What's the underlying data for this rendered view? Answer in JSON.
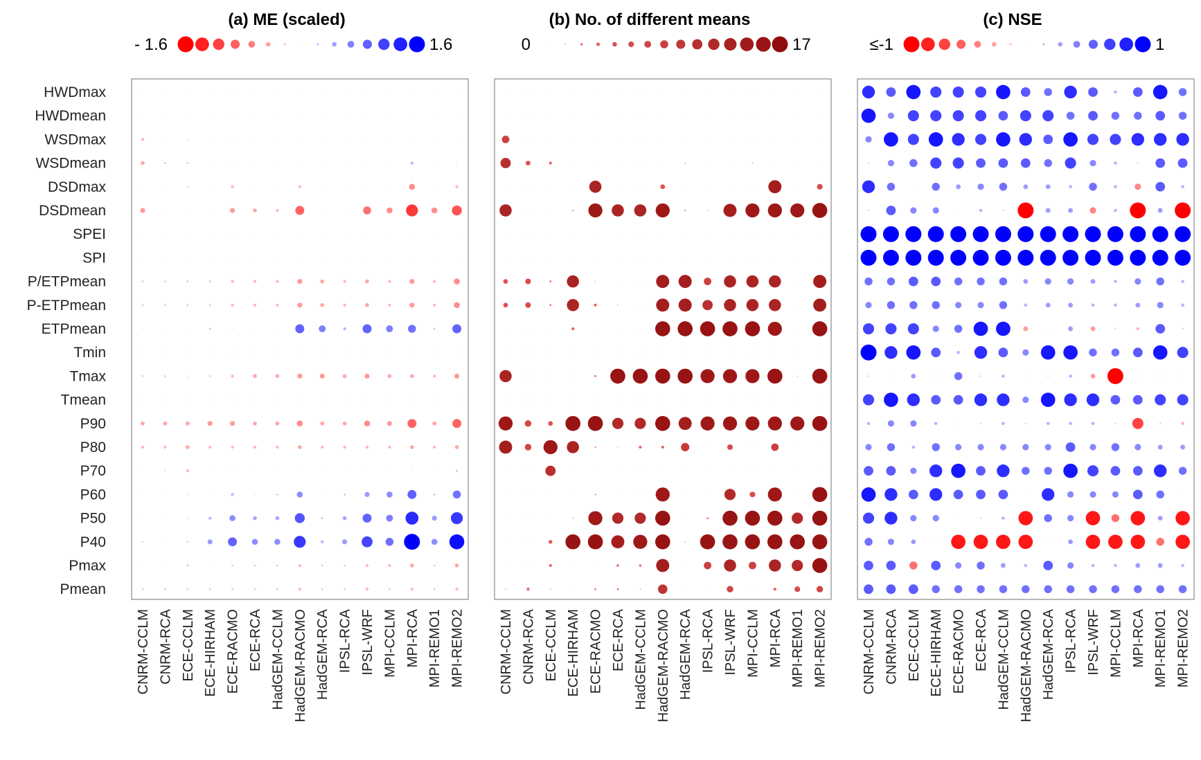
{
  "chart_data": {
    "type": "bubble-matrix",
    "rows": [
      "HWDmax",
      "HWDmean",
      "WSDmax",
      "WSDmean",
      "DSDmax",
      "DSDmean",
      "SPEI",
      "SPI",
      "P/ETPmean",
      "P-ETPmean",
      "ETPmean",
      "Tmin",
      "Tmax",
      "Tmean",
      "P90",
      "P80",
      "P70",
      "P60",
      "P50",
      "P40",
      "Pmax",
      "Pmean"
    ],
    "columns": [
      "CNRM-CCLM",
      "CNRM-RCA",
      "ECE-CCLM",
      "ECE-HIRHAM",
      "ECE-RACMO",
      "ECE-RCA",
      "HadGEM-CCLM",
      "HadGEM-RACMO",
      "HadGEM-RCA",
      "IPSL-RCA",
      "IPSL-WRF",
      "MPI-CCLM",
      "MPI-RCA",
      "MPI-REMO1",
      "MPI-REMO2"
    ],
    "panels": [
      {
        "title": "(a)  ME (scaled)",
        "legend_min_label": "- 1.6",
        "legend_max_label": "1.6",
        "scale": "diverging",
        "range": [
          -1.6,
          1.6
        ],
        "neg_color": "#ff0000",
        "pos_color": "#0000ff",
        "values": [
          [
            0,
            0,
            0,
            0,
            0,
            -0.1,
            0,
            0,
            0,
            0,
            0,
            0,
            -0.1,
            0,
            -0.1
          ],
          [
            0,
            0,
            0,
            0,
            0,
            0,
            0,
            0,
            0,
            0,
            0,
            0,
            -0.1,
            0,
            -0.1
          ],
          [
            -0.3,
            0,
            -0.15,
            0,
            0,
            0,
            0,
            0,
            0,
            0,
            0,
            0,
            0.05,
            0,
            0
          ],
          [
            -0.4,
            -0.2,
            -0.2,
            0,
            0,
            -0.1,
            0,
            -0.1,
            0,
            0,
            0,
            0.1,
            0.3,
            0,
            0.1
          ],
          [
            0,
            0,
            0.15,
            0,
            -0.3,
            0,
            0,
            -0.3,
            0,
            0,
            0,
            0,
            -0.6,
            0,
            -0.3
          ],
          [
            -0.5,
            0,
            0,
            -0.1,
            -0.5,
            -0.4,
            -0.3,
            -0.9,
            0,
            0,
            -0.8,
            -0.6,
            -1.2,
            -0.6,
            -1.0
          ],
          [
            0,
            0,
            0,
            0,
            0,
            0,
            0,
            0,
            0,
            0,
            0,
            0,
            0,
            0,
            0
          ],
          [
            0,
            0,
            0,
            0,
            0,
            0,
            0,
            0,
            0,
            0,
            0,
            0,
            0,
            0,
            0
          ],
          [
            -0.2,
            -0.2,
            -0.2,
            -0.2,
            -0.3,
            -0.3,
            -0.3,
            -0.5,
            -0.4,
            -0.3,
            -0.4,
            -0.3,
            -0.5,
            -0.3,
            -0.6
          ],
          [
            -0.2,
            -0.2,
            -0.2,
            -0.2,
            -0.3,
            -0.3,
            -0.3,
            -0.5,
            -0.4,
            -0.3,
            -0.4,
            -0.3,
            -0.5,
            -0.3,
            -0.6
          ],
          [
            0.1,
            0.1,
            0,
            0.2,
            0.1,
            0,
            0,
            0.9,
            0.7,
            0.3,
            0.9,
            0.7,
            0.8,
            0.2,
            0.9
          ],
          [
            0,
            0,
            0,
            0,
            -0.1,
            0,
            0,
            0,
            0,
            0,
            0,
            0,
            0,
            0,
            0
          ],
          [
            -0.2,
            -0.2,
            -0.15,
            -0.2,
            -0.3,
            -0.4,
            -0.4,
            -0.5,
            -0.5,
            -0.4,
            -0.5,
            -0.4,
            -0.4,
            -0.3,
            -0.5
          ],
          [
            0,
            0,
            0,
            0,
            0,
            0,
            0,
            0,
            0,
            0,
            0,
            0,
            0,
            0,
            0
          ],
          [
            -0.4,
            -0.4,
            -0.4,
            -0.5,
            -0.5,
            -0.4,
            -0.4,
            -0.6,
            -0.4,
            -0.4,
            -0.6,
            -0.5,
            -0.9,
            -0.4,
            -0.9
          ],
          [
            -0.3,
            -0.3,
            -0.4,
            -0.3,
            -0.3,
            -0.3,
            -0.3,
            -0.4,
            -0.3,
            -0.3,
            -0.3,
            -0.3,
            -0.4,
            -0.3,
            -0.4
          ],
          [
            -0.1,
            -0.15,
            -0.3,
            0,
            0,
            0,
            0,
            0,
            0,
            0,
            0,
            0,
            0.1,
            0,
            0.2
          ],
          [
            0,
            0,
            -0.15,
            0,
            0.3,
            0.1,
            0.2,
            0.6,
            0,
            0.2,
            0.5,
            0.6,
            0.9,
            0.2,
            0.8
          ],
          [
            0,
            0,
            -0.15,
            0.3,
            0.6,
            0.4,
            0.4,
            1.0,
            0.2,
            0.4,
            0.9,
            0.7,
            1.3,
            0.5,
            1.2
          ],
          [
            0.15,
            0,
            -0.2,
            0.5,
            0.9,
            0.6,
            0.6,
            1.2,
            0.3,
            0.5,
            1.1,
            0.8,
            1.6,
            0.6,
            1.5
          ],
          [
            0,
            0,
            0.2,
            0,
            -0.2,
            -0.2,
            -0.2,
            -0.3,
            -0.2,
            -0.2,
            -0.3,
            -0.3,
            -0.4,
            -0.2,
            -0.4
          ],
          [
            -0.2,
            -0.2,
            -0.2,
            -0.2,
            -0.2,
            -0.2,
            -0.2,
            -0.3,
            -0.2,
            -0.2,
            -0.3,
            -0.2,
            -0.3,
            -0.2,
            -0.3
          ]
        ]
      },
      {
        "title": "(b)  No. of different means",
        "legend_min_label": "0",
        "legend_max_label": "17",
        "scale": "sequential",
        "range": [
          0,
          17
        ],
        "low_color": "#ff6666",
        "high_color": "#8b0000",
        "values": [
          [
            0,
            0,
            0,
            0,
            0,
            0,
            0,
            0,
            0,
            0,
            0,
            0,
            0,
            0,
            0.5
          ],
          [
            0,
            0,
            0,
            0,
            0,
            0,
            0,
            0,
            0,
            0,
            0,
            0,
            0,
            0,
            0
          ],
          [
            8,
            0,
            0.5,
            0,
            0,
            0,
            0,
            0,
            0,
            0,
            0,
            0,
            0,
            0,
            0
          ],
          [
            11,
            5,
            3,
            0,
            0,
            0,
            0,
            0.5,
            1,
            0,
            0.5,
            1,
            0.5,
            0,
            0
          ],
          [
            0,
            0,
            0,
            0,
            13,
            0,
            0,
            5,
            0,
            0,
            0,
            0,
            14,
            0,
            6
          ],
          [
            13,
            0,
            0,
            1.5,
            15,
            13,
            13,
            15,
            1.5,
            1,
            14,
            15,
            15,
            15,
            16
          ],
          [
            0,
            0,
            0,
            0,
            0,
            0,
            0,
            0,
            0,
            0,
            0,
            0,
            0,
            0,
            0
          ],
          [
            0,
            0,
            0,
            0,
            0,
            0,
            0,
            0,
            0,
            0,
            0,
            0,
            0,
            0,
            0
          ],
          [
            5,
            6,
            2,
            13,
            1,
            0,
            0,
            14,
            14,
            8,
            13,
            13,
            13,
            0,
            14
          ],
          [
            5,
            6,
            2,
            13,
            3,
            1,
            0,
            14,
            14,
            11,
            13,
            13,
            13,
            0,
            14
          ],
          [
            0,
            0,
            0,
            3,
            0,
            0,
            0,
            16,
            16,
            16,
            16,
            16,
            15,
            0,
            16
          ],
          [
            0,
            0,
            0,
            0,
            0,
            0,
            0,
            0,
            0,
            0,
            0,
            0,
            0,
            0,
            0
          ],
          [
            13,
            0,
            0,
            0,
            2,
            16,
            16,
            16,
            16,
            15,
            15,
            15,
            16,
            1,
            16
          ],
          [
            0,
            0,
            0,
            0,
            0,
            0,
            0,
            0,
            0,
            0,
            0,
            0,
            0,
            0,
            0
          ],
          [
            15,
            7,
            5,
            16,
            16,
            12,
            12,
            16,
            14,
            15,
            15,
            15,
            15,
            15,
            16
          ],
          [
            14,
            7,
            15,
            13,
            1.5,
            1,
            3,
            3,
            9,
            0,
            6,
            0.5,
            8,
            0.5,
            0
          ],
          [
            0,
            0,
            11,
            0,
            0,
            0,
            0,
            0,
            0,
            0,
            0,
            0,
            0,
            0,
            0
          ],
          [
            0,
            0,
            0.5,
            0,
            1.5,
            0,
            0,
            15,
            0,
            0,
            12,
            6,
            15,
            0,
            16
          ],
          [
            0,
            0,
            0.5,
            1,
            15,
            12,
            12,
            16,
            0,
            2,
            16,
            16,
            16,
            12,
            16
          ],
          [
            0,
            0,
            4,
            16,
            16,
            14,
            15,
            16,
            1,
            16,
            16,
            16,
            16,
            16,
            16
          ],
          [
            0,
            0,
            3,
            0,
            0,
            2.5,
            2.5,
            14,
            0,
            8,
            13,
            8,
            13,
            12,
            16
          ],
          [
            1,
            3,
            1,
            0.5,
            2,
            2,
            1,
            10,
            0,
            0,
            7,
            0,
            3,
            6,
            7
          ]
        ]
      },
      {
        "title": "(c)  NSE",
        "legend_min_label": "≤-1",
        "legend_max_label": "1",
        "scale": "diverging",
        "range": [
          -1,
          1
        ],
        "neg_color": "#ff0000",
        "pos_color": "#0000ff",
        "values": [
          [
            0.8,
            0.6,
            0.9,
            0.7,
            0.7,
            0.7,
            0.9,
            0.6,
            0.5,
            0.8,
            0.6,
            0.2,
            0.6,
            0.9,
            0.5
          ],
          [
            0.9,
            0.4,
            0.7,
            0.7,
            0.7,
            0.7,
            0.6,
            0.7,
            0.7,
            0.5,
            0.6,
            0.5,
            0.5,
            0.6,
            0.5
          ],
          [
            0.4,
            0.9,
            0.7,
            0.9,
            0.8,
            0.7,
            0.9,
            0.8,
            0.6,
            0.9,
            0.7,
            0.7,
            0.8,
            0.8,
            0.8
          ],
          [
            0.1,
            0.4,
            0.5,
            0.7,
            0.7,
            0.6,
            0.6,
            0.6,
            0.5,
            0.7,
            0.4,
            0.2,
            0.1,
            0.6,
            0.6
          ],
          [
            0.8,
            0.5,
            0,
            0.5,
            0.3,
            0.4,
            0.5,
            0.3,
            0.3,
            0.2,
            0.5,
            0.2,
            -0.4,
            0.6,
            0.2
          ],
          [
            0.1,
            0.6,
            0.4,
            0.4,
            0,
            0.2,
            0.1,
            -1.0,
            0.3,
            0.3,
            -0.4,
            0.2,
            -1.0,
            0.3,
            -1.0
          ],
          [
            1,
            1,
            1,
            1,
            1,
            1,
            1,
            1,
            1,
            1,
            1,
            1,
            1,
            1,
            1
          ],
          [
            1,
            1,
            1,
            1,
            1,
            1,
            1,
            1,
            1,
            1,
            1,
            1,
            1,
            1,
            1
          ],
          [
            0.5,
            0.5,
            0.6,
            0.6,
            0.5,
            0.5,
            0.5,
            0.3,
            0.4,
            0.4,
            0.3,
            0.2,
            0.4,
            0.5,
            0.2
          ],
          [
            0.4,
            0.5,
            0.5,
            0.5,
            0.4,
            0.4,
            0.5,
            0.2,
            0.3,
            0.3,
            0.2,
            0.2,
            0.3,
            0.4,
            0.2
          ],
          [
            0.7,
            0.7,
            0.7,
            0.4,
            0.5,
            0.9,
            0.9,
            -0.3,
            0,
            0.3,
            -0.3,
            0.1,
            -0.2,
            0.6,
            0.1
          ],
          [
            1,
            0.8,
            0.9,
            0.6,
            0.2,
            0.8,
            0.6,
            0.4,
            0.9,
            0.9,
            0.5,
            0.5,
            0.6,
            0.9,
            0.7
          ],
          [
            0.1,
            0,
            0.3,
            0,
            0.5,
            0.1,
            0.2,
            0,
            0.1,
            0.2,
            -0.3,
            -1.0,
            0,
            0,
            0
          ],
          [
            0.7,
            0.9,
            0.8,
            0.6,
            0.6,
            0.8,
            0.8,
            0.4,
            0.9,
            0.8,
            0.8,
            0.6,
            0.6,
            0.7,
            0.7
          ],
          [
            0.2,
            0.4,
            0.4,
            0.2,
            0,
            0.1,
            0.2,
            0.1,
            0.2,
            0.2,
            0.2,
            0.1,
            -0.7,
            0.1,
            -0.2
          ],
          [
            0.4,
            0.5,
            0.2,
            0.5,
            0.4,
            0.4,
            0.4,
            0.4,
            0.4,
            0.6,
            0.4,
            0.5,
            0.4,
            0.3,
            0.3
          ],
          [
            0.6,
            0.6,
            0.4,
            0.8,
            0.9,
            0.6,
            0.8,
            0.5,
            0.5,
            0.9,
            0.7,
            0.6,
            0.6,
            0.8,
            0.5
          ],
          [
            0.9,
            0.8,
            0.6,
            0.8,
            0.6,
            0.6,
            0.6,
            0,
            0.8,
            0.4,
            0.4,
            0.4,
            0.6,
            0.5,
            0
          ],
          [
            0.7,
            0.8,
            0.4,
            0.4,
            0,
            0.1,
            0.2,
            -0.9,
            0.5,
            0.4,
            -0.9,
            -0.5,
            -0.9,
            0.3,
            -0.9
          ],
          [
            0.5,
            0.4,
            0.3,
            0,
            -0.9,
            -0.9,
            -0.9,
            -0.9,
            0,
            0.3,
            -0.9,
            -0.9,
            -0.9,
            -0.5,
            -0.9
          ],
          [
            0.6,
            0.6,
            -0.5,
            0.6,
            0.4,
            0.5,
            0.3,
            0.2,
            0.6,
            0.4,
            0.2,
            0.2,
            0.3,
            0.3,
            0.2
          ],
          [
            0.6,
            0.6,
            0.6,
            0.5,
            0.5,
            0.5,
            0.5,
            0.5,
            0.5,
            0.5,
            0.5,
            0.5,
            0.5,
            0.5,
            0.5
          ]
        ]
      }
    ]
  }
}
